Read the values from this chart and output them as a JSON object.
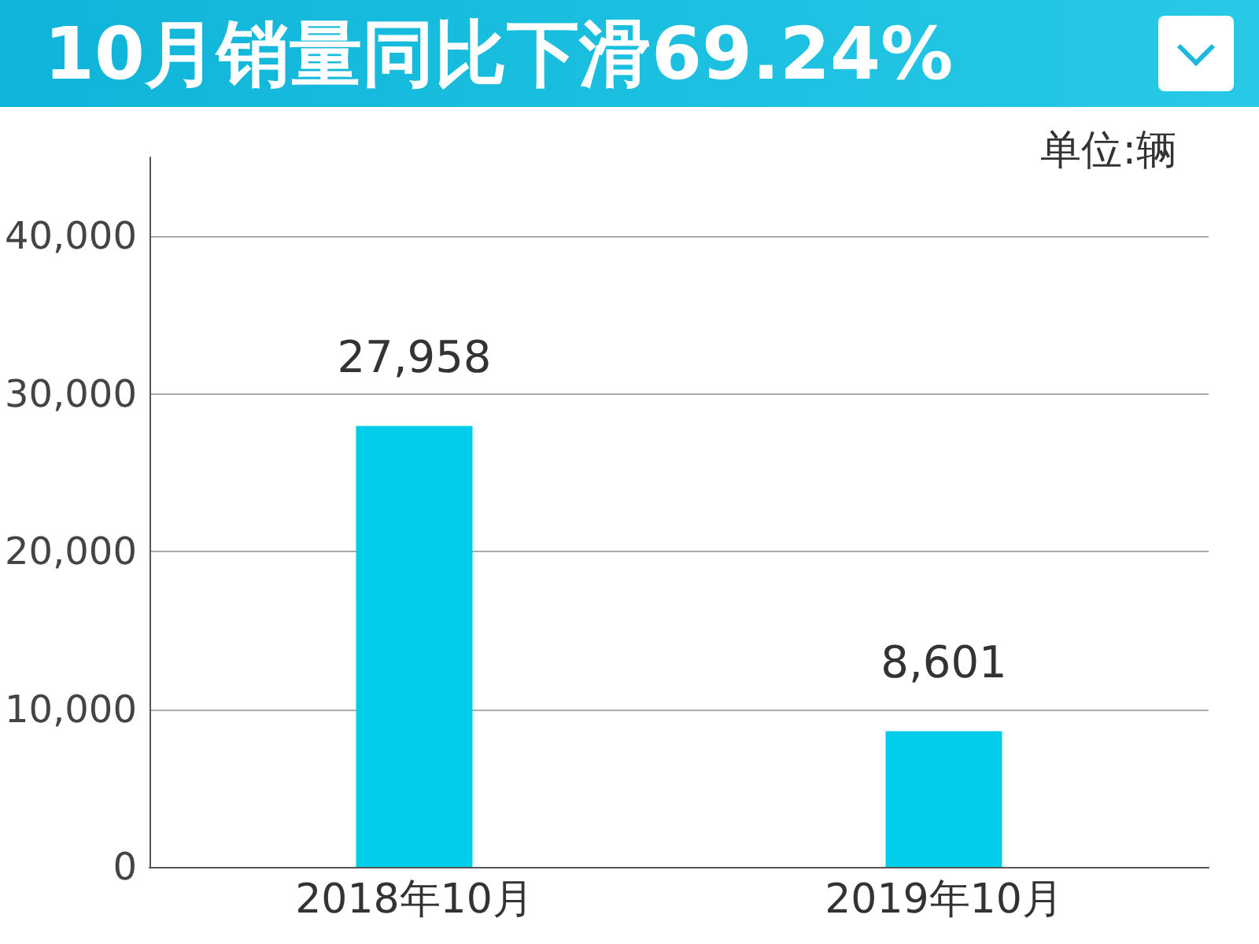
{
  "chart_data": {
    "type": "bar",
    "title": "10月销量同比下滑69.24%",
    "annotations": [
      "单位:辆"
    ],
    "categories": [
      "2018年10月",
      "2019年10月"
    ],
    "values": [
      27958,
      8601
    ],
    "color": "#00cdea",
    "value_labels": [
      "27,958",
      "8,601"
    ],
    "ylim": [
      0,
      45000
    ],
    "yticks": [
      0,
      {
        "value": 10000,
        "label": "10,000"
      },
      {
        "value": 20000,
        "label": "20,000"
      },
      {
        "value": 30000,
        "label": "30,000"
      },
      {
        "value": 40000,
        "label": "40,000"
      }
    ],
    "grid": "y"
  }
}
